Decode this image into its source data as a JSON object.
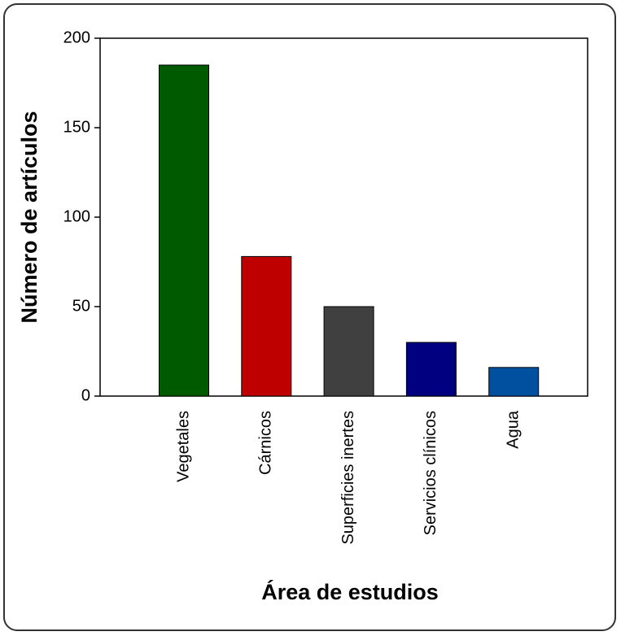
{
  "chart_data": {
    "type": "bar",
    "x_label": "Área de estudios",
    "y_label": "Número de artículos",
    "categories": [
      "Vegetales",
      "Cárnicos",
      "Superficies inertes",
      "Servicios clínicos",
      "Agua"
    ],
    "values": [
      185,
      78,
      50,
      30,
      16
    ],
    "colors": [
      "#005a00",
      "#be0000",
      "#404040",
      "#000080",
      "#0050a0"
    ],
    "ylim": [
      0,
      200
    ],
    "yticks": [
      0,
      50,
      100,
      150,
      200
    ],
    "grid": false
  }
}
